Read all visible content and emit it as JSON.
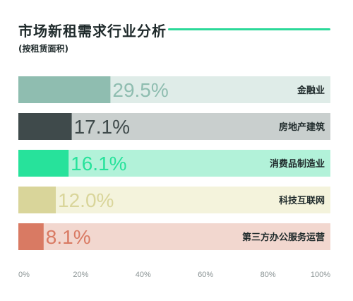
{
  "header": {
    "title": "市场新租需求行业分析",
    "subtitle": "(按租赁面积)"
  },
  "chart_data": {
    "type": "bar",
    "orientation": "horizontal",
    "title": "市场新租需求行业分析",
    "subtitle": "(按租赁面积)",
    "categories": [
      "金融业",
      "房地产建筑",
      "消费品制造业",
      "科技互联网",
      "第三方办公服务运营"
    ],
    "values": [
      29.5,
      17.1,
      16.1,
      12.0,
      8.1
    ],
    "value_labels": [
      "29.5%",
      "17.1%",
      "16.1%",
      "12.0%",
      "8.1%"
    ],
    "xlim": [
      0,
      100
    ],
    "xticks": [
      "0%",
      "20%",
      "40%",
      "60%",
      "80%",
      "100%"
    ],
    "tick_values": [
      0,
      20,
      40,
      60,
      80,
      100
    ],
    "grid": false,
    "legend": "none",
    "colors": {
      "bars": [
        "#8fbdb0",
        "#3f4a4b",
        "#27e29b",
        "#d9d59a",
        "#d97a63"
      ],
      "tracks": [
        "#dfece8",
        "#c9cfce",
        "#b2f2d9",
        "#f4f3dc",
        "#f2d7cf"
      ],
      "labels": [
        "#8fbdb0",
        "#3f4a4b",
        "#27e29b",
        "#d9d59a",
        "#d97a63"
      ]
    }
  }
}
